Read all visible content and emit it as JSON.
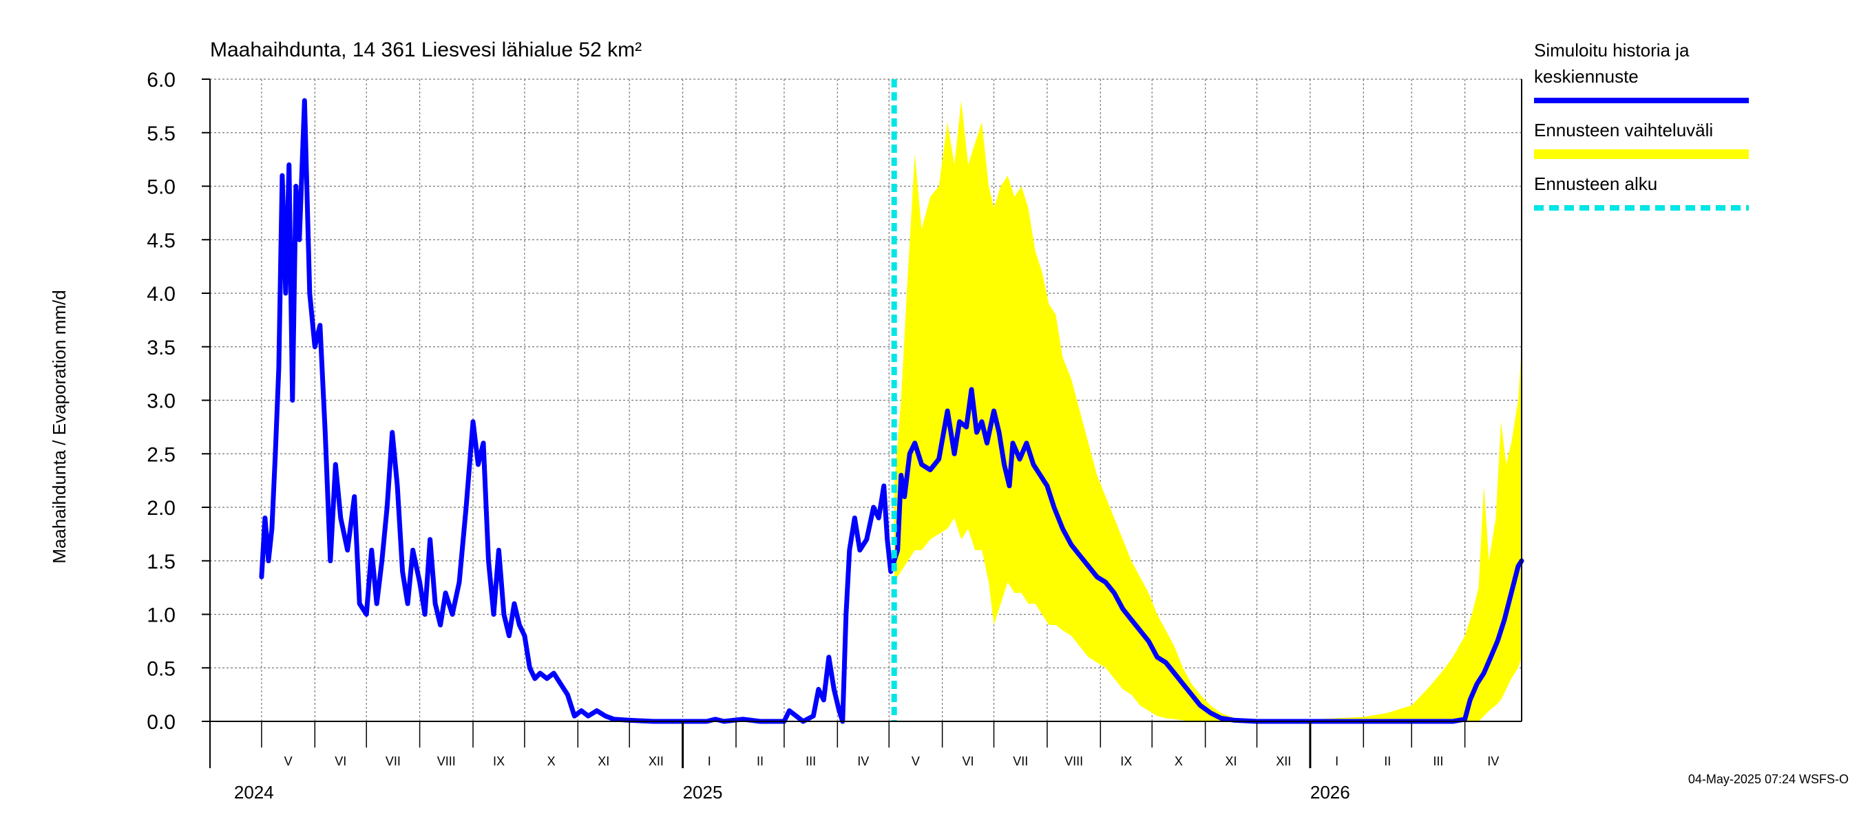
{
  "chart_data": {
    "type": "line",
    "title": "Maahaihdunta, 14 361 Liesvesi lähialue 52 km²",
    "ylabel": "Maahaihdunta / Evaporation   mm/d",
    "ylim": [
      0,
      6.0
    ],
    "yticks": [
      "0.0",
      "0.5",
      "1.0",
      "1.5",
      "2.0",
      "2.5",
      "3.0",
      "3.5",
      "4.0",
      "4.5",
      "5.0",
      "5.5",
      "6.0"
    ],
    "xlim": [
      "2024-04-01",
      "2026-05-04"
    ],
    "grid": true,
    "legend_position": "right",
    "months": [
      {
        "label": "V",
        "start": "2024-05-01"
      },
      {
        "label": "VI",
        "start": "2024-06-01"
      },
      {
        "label": "VII",
        "start": "2024-07-01"
      },
      {
        "label": "VIII",
        "start": "2024-08-01"
      },
      {
        "label": "IX",
        "start": "2024-09-01"
      },
      {
        "label": "X",
        "start": "2024-10-01"
      },
      {
        "label": "XI",
        "start": "2024-11-01"
      },
      {
        "label": "XII",
        "start": "2024-12-01"
      },
      {
        "label": "I",
        "start": "2025-01-01"
      },
      {
        "label": "II",
        "start": "2025-02-01"
      },
      {
        "label": "III",
        "start": "2025-03-01"
      },
      {
        "label": "IV",
        "start": "2025-04-01"
      },
      {
        "label": "V",
        "start": "2025-05-01"
      },
      {
        "label": "VI",
        "start": "2025-06-01"
      },
      {
        "label": "VII",
        "start": "2025-07-01"
      },
      {
        "label": "VIII",
        "start": "2025-08-01"
      },
      {
        "label": "IX",
        "start": "2025-09-01"
      },
      {
        "label": "X",
        "start": "2025-10-01"
      },
      {
        "label": "XI",
        "start": "2025-11-01"
      },
      {
        "label": "XII",
        "start": "2025-12-01"
      },
      {
        "label": "I",
        "start": "2026-01-01"
      },
      {
        "label": "II",
        "start": "2026-02-01"
      },
      {
        "label": "III",
        "start": "2026-03-01"
      },
      {
        "label": "IV",
        "start": "2026-04-01"
      }
    ],
    "years": [
      {
        "label": "2024",
        "at": "2024-05-01"
      },
      {
        "label": "2025",
        "at": "2025-01-01"
      },
      {
        "label": "2026",
        "at": "2026-01-01"
      }
    ],
    "forecast_start": "2025-05-04",
    "series": [
      {
        "name": "Simuloitu historia ja keskiennuste",
        "color": "#0000ff",
        "points": [
          [
            "2024-05-01",
            1.35
          ],
          [
            "2024-05-03",
            1.9
          ],
          [
            "2024-05-05",
            1.5
          ],
          [
            "2024-05-07",
            1.8
          ],
          [
            "2024-05-09",
            2.5
          ],
          [
            "2024-05-11",
            3.3
          ],
          [
            "2024-05-13",
            5.1
          ],
          [
            "2024-05-15",
            4.0
          ],
          [
            "2024-05-17",
            5.2
          ],
          [
            "2024-05-19",
            3.0
          ],
          [
            "2024-05-21",
            5.0
          ],
          [
            "2024-05-23",
            4.5
          ],
          [
            "2024-05-26",
            5.8
          ],
          [
            "2024-05-29",
            4.0
          ],
          [
            "2024-06-01",
            3.5
          ],
          [
            "2024-06-04",
            3.7
          ],
          [
            "2024-06-07",
            2.7
          ],
          [
            "2024-06-10",
            1.5
          ],
          [
            "2024-06-13",
            2.4
          ],
          [
            "2024-06-16",
            1.9
          ],
          [
            "2024-06-20",
            1.6
          ],
          [
            "2024-06-24",
            2.1
          ],
          [
            "2024-06-27",
            1.1
          ],
          [
            "2024-07-01",
            1.0
          ],
          [
            "2024-07-04",
            1.6
          ],
          [
            "2024-07-07",
            1.1
          ],
          [
            "2024-07-10",
            1.5
          ],
          [
            "2024-07-13",
            2.0
          ],
          [
            "2024-07-16",
            2.7
          ],
          [
            "2024-07-19",
            2.2
          ],
          [
            "2024-07-22",
            1.4
          ],
          [
            "2024-07-25",
            1.1
          ],
          [
            "2024-07-28",
            1.6
          ],
          [
            "2024-08-01",
            1.3
          ],
          [
            "2024-08-04",
            1.0
          ],
          [
            "2024-08-07",
            1.7
          ],
          [
            "2024-08-10",
            1.1
          ],
          [
            "2024-08-13",
            0.9
          ],
          [
            "2024-08-16",
            1.2
          ],
          [
            "2024-08-20",
            1.0
          ],
          [
            "2024-08-24",
            1.3
          ],
          [
            "2024-08-28",
            2.0
          ],
          [
            "2024-09-01",
            2.8
          ],
          [
            "2024-09-04",
            2.4
          ],
          [
            "2024-09-07",
            2.6
          ],
          [
            "2024-09-10",
            1.5
          ],
          [
            "2024-09-13",
            1.0
          ],
          [
            "2024-09-16",
            1.6
          ],
          [
            "2024-09-19",
            1.0
          ],
          [
            "2024-09-22",
            0.8
          ],
          [
            "2024-09-25",
            1.1
          ],
          [
            "2024-09-28",
            0.9
          ],
          [
            "2024-10-01",
            0.8
          ],
          [
            "2024-10-04",
            0.5
          ],
          [
            "2024-10-07",
            0.4
          ],
          [
            "2024-10-10",
            0.45
          ],
          [
            "2024-10-14",
            0.4
          ],
          [
            "2024-10-18",
            0.45
          ],
          [
            "2024-10-22",
            0.35
          ],
          [
            "2024-10-26",
            0.25
          ],
          [
            "2024-10-30",
            0.05
          ],
          [
            "2024-11-03",
            0.1
          ],
          [
            "2024-11-07",
            0.05
          ],
          [
            "2024-11-12",
            0.1
          ],
          [
            "2024-11-17",
            0.05
          ],
          [
            "2024-11-22",
            0.02
          ],
          [
            "2024-12-01",
            0.01
          ],
          [
            "2024-12-15",
            0.0
          ],
          [
            "2025-01-01",
            0.0
          ],
          [
            "2025-01-15",
            0.0
          ],
          [
            "2025-01-20",
            0.02
          ],
          [
            "2025-01-25",
            0.0
          ],
          [
            "2025-02-05",
            0.02
          ],
          [
            "2025-02-15",
            0.0
          ],
          [
            "2025-03-01",
            0.0
          ],
          [
            "2025-03-04",
            0.1
          ],
          [
            "2025-03-08",
            0.05
          ],
          [
            "2025-03-12",
            0.0
          ],
          [
            "2025-03-18",
            0.05
          ],
          [
            "2025-03-21",
            0.3
          ],
          [
            "2025-03-24",
            0.2
          ],
          [
            "2025-03-27",
            0.6
          ],
          [
            "2025-03-30",
            0.3
          ],
          [
            "2025-04-02",
            0.1
          ],
          [
            "2025-04-04",
            0.0
          ],
          [
            "2025-04-06",
            1.0
          ],
          [
            "2025-04-08",
            1.6
          ],
          [
            "2025-04-11",
            1.9
          ],
          [
            "2025-04-14",
            1.6
          ],
          [
            "2025-04-18",
            1.7
          ],
          [
            "2025-04-22",
            2.0
          ],
          [
            "2025-04-25",
            1.9
          ],
          [
            "2025-04-28",
            2.2
          ],
          [
            "2025-04-30",
            1.7
          ],
          [
            "2025-05-02",
            1.4
          ],
          [
            "2025-05-04",
            1.5
          ],
          [
            "2025-05-06",
            1.6
          ],
          [
            "2025-05-08",
            2.3
          ],
          [
            "2025-05-10",
            2.1
          ],
          [
            "2025-05-13",
            2.5
          ],
          [
            "2025-05-16",
            2.6
          ],
          [
            "2025-05-20",
            2.4
          ],
          [
            "2025-05-25",
            2.35
          ],
          [
            "2025-05-30",
            2.45
          ],
          [
            "2025-06-04",
            2.9
          ],
          [
            "2025-06-08",
            2.5
          ],
          [
            "2025-06-11",
            2.8
          ],
          [
            "2025-06-15",
            2.75
          ],
          [
            "2025-06-18",
            3.1
          ],
          [
            "2025-06-21",
            2.7
          ],
          [
            "2025-06-24",
            2.8
          ],
          [
            "2025-06-27",
            2.6
          ],
          [
            "2025-07-01",
            2.9
          ],
          [
            "2025-07-04",
            2.7
          ],
          [
            "2025-07-07",
            2.4
          ],
          [
            "2025-07-10",
            2.2
          ],
          [
            "2025-07-12",
            2.6
          ],
          [
            "2025-07-16",
            2.45
          ],
          [
            "2025-07-20",
            2.6
          ],
          [
            "2025-07-24",
            2.4
          ],
          [
            "2025-07-28",
            2.3
          ],
          [
            "2025-08-01",
            2.2
          ],
          [
            "2025-08-05",
            2.0
          ],
          [
            "2025-08-10",
            1.8
          ],
          [
            "2025-08-15",
            1.65
          ],
          [
            "2025-08-20",
            1.55
          ],
          [
            "2025-08-25",
            1.45
          ],
          [
            "2025-08-30",
            1.35
          ],
          [
            "2025-09-04",
            1.3
          ],
          [
            "2025-09-09",
            1.2
          ],
          [
            "2025-09-14",
            1.05
          ],
          [
            "2025-09-19",
            0.95
          ],
          [
            "2025-09-24",
            0.85
          ],
          [
            "2025-09-29",
            0.75
          ],
          [
            "2025-10-04",
            0.6
          ],
          [
            "2025-10-09",
            0.55
          ],
          [
            "2025-10-14",
            0.45
          ],
          [
            "2025-10-19",
            0.35
          ],
          [
            "2025-10-24",
            0.25
          ],
          [
            "2025-10-29",
            0.15
          ],
          [
            "2025-11-04",
            0.08
          ],
          [
            "2025-11-10",
            0.03
          ],
          [
            "2025-11-18",
            0.01
          ],
          [
            "2025-12-01",
            0.0
          ],
          [
            "2026-01-01",
            0.0
          ],
          [
            "2026-02-01",
            0.0
          ],
          [
            "2026-03-01",
            0.0
          ],
          [
            "2026-03-25",
            0.0
          ],
          [
            "2026-04-01",
            0.02
          ],
          [
            "2026-04-04",
            0.2
          ],
          [
            "2026-04-08",
            0.35
          ],
          [
            "2026-04-12",
            0.45
          ],
          [
            "2026-04-16",
            0.6
          ],
          [
            "2026-04-20",
            0.75
          ],
          [
            "2026-04-24",
            0.95
          ],
          [
            "2026-04-28",
            1.2
          ],
          [
            "2026-05-02",
            1.45
          ],
          [
            "2026-05-04",
            1.5
          ]
        ]
      },
      {
        "name": "Ennusteen vaihteluväli",
        "color": "#ffff00",
        "band": [
          [
            "2025-05-04",
            1.3,
            2.2
          ],
          [
            "2025-05-08",
            1.4,
            3.0
          ],
          [
            "2025-05-12",
            1.5,
            4.2
          ],
          [
            "2025-05-16",
            1.6,
            5.3
          ],
          [
            "2025-05-20",
            1.6,
            4.6
          ],
          [
            "2025-05-25",
            1.7,
            4.9
          ],
          [
            "2025-05-30",
            1.75,
            5.0
          ],
          [
            "2025-06-04",
            1.8,
            5.6
          ],
          [
            "2025-06-08",
            1.9,
            5.2
          ],
          [
            "2025-06-12",
            1.7,
            5.8
          ],
          [
            "2025-06-16",
            1.8,
            5.2
          ],
          [
            "2025-06-20",
            1.6,
            5.4
          ],
          [
            "2025-06-24",
            1.6,
            5.6
          ],
          [
            "2025-06-28",
            1.3,
            5.0
          ],
          [
            "2025-07-01",
            0.9,
            4.8
          ],
          [
            "2025-07-05",
            1.1,
            5.0
          ],
          [
            "2025-07-09",
            1.3,
            5.1
          ],
          [
            "2025-07-13",
            1.2,
            4.9
          ],
          [
            "2025-07-17",
            1.2,
            5.0
          ],
          [
            "2025-07-21",
            1.1,
            4.8
          ],
          [
            "2025-07-25",
            1.1,
            4.4
          ],
          [
            "2025-07-29",
            1.0,
            4.2
          ],
          [
            "2025-08-02",
            0.9,
            3.9
          ],
          [
            "2025-08-06",
            0.9,
            3.8
          ],
          [
            "2025-08-10",
            0.85,
            3.4
          ],
          [
            "2025-08-15",
            0.8,
            3.2
          ],
          [
            "2025-08-20",
            0.7,
            2.9
          ],
          [
            "2025-08-25",
            0.6,
            2.6
          ],
          [
            "2025-08-30",
            0.55,
            2.3
          ],
          [
            "2025-09-04",
            0.5,
            2.1
          ],
          [
            "2025-09-09",
            0.4,
            1.9
          ],
          [
            "2025-09-14",
            0.3,
            1.7
          ],
          [
            "2025-09-19",
            0.25,
            1.5
          ],
          [
            "2025-09-24",
            0.15,
            1.35
          ],
          [
            "2025-09-29",
            0.1,
            1.2
          ],
          [
            "2025-10-04",
            0.05,
            1.0
          ],
          [
            "2025-10-09",
            0.03,
            0.85
          ],
          [
            "2025-10-14",
            0.02,
            0.7
          ],
          [
            "2025-10-19",
            0.01,
            0.5
          ],
          [
            "2025-10-24",
            0.0,
            0.35
          ],
          [
            "2025-10-29",
            0.0,
            0.25
          ],
          [
            "2025-11-04",
            0.0,
            0.15
          ],
          [
            "2025-11-10",
            0.0,
            0.08
          ],
          [
            "2025-11-18",
            0.0,
            0.03
          ],
          [
            "2025-12-01",
            0.0,
            0.02
          ],
          [
            "2026-01-01",
            0.0,
            0.02
          ],
          [
            "2026-02-01",
            0.0,
            0.04
          ],
          [
            "2026-02-15",
            0.0,
            0.08
          ],
          [
            "2026-03-01",
            0.0,
            0.15
          ],
          [
            "2026-03-10",
            0.0,
            0.3
          ],
          [
            "2026-03-18",
            0.0,
            0.45
          ],
          [
            "2026-03-25",
            0.0,
            0.6
          ],
          [
            "2026-04-01",
            0.0,
            0.8
          ],
          [
            "2026-04-05",
            0.0,
            1.0
          ],
          [
            "2026-04-09",
            0.0,
            1.25
          ],
          [
            "2026-04-12",
            0.05,
            2.2
          ],
          [
            "2026-04-15",
            0.1,
            1.5
          ],
          [
            "2026-04-19",
            0.15,
            1.9
          ],
          [
            "2026-04-22",
            0.2,
            2.8
          ],
          [
            "2026-04-25",
            0.3,
            2.4
          ],
          [
            "2026-04-28",
            0.4,
            2.6
          ],
          [
            "2026-05-02",
            0.5,
            3.0
          ],
          [
            "2026-05-04",
            0.6,
            3.5
          ]
        ]
      }
    ],
    "legend": [
      {
        "label_lines": [
          "Simuloitu historia ja",
          "keskiennuste"
        ],
        "color": "#0000ff",
        "style": "solid"
      },
      {
        "label_lines": [
          "Ennusteen vaihteluväli"
        ],
        "color": "#ffff00",
        "style": "solid"
      },
      {
        "label_lines": [
          "Ennusteen alku"
        ],
        "color": "#00e5e5",
        "style": "dashed"
      }
    ],
    "footer": "04-May-2025 07:24 WSFS-O"
  }
}
